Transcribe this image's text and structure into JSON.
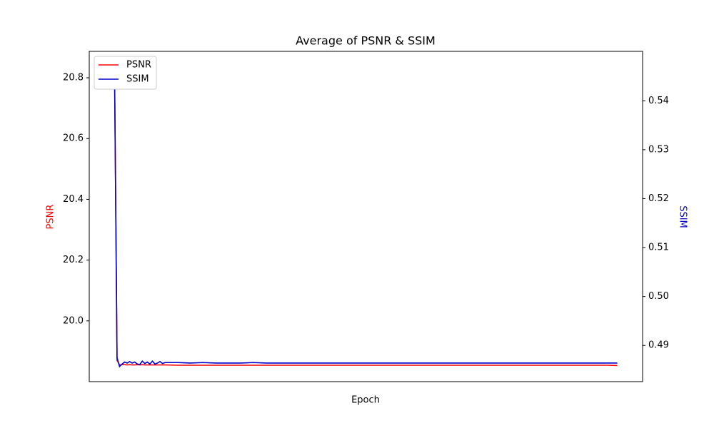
{
  "chart_data": {
    "type": "line",
    "title": "Average of PSNR & SSIM",
    "xlabel": "Epoch",
    "ylabel": "PSNR",
    "y2label": "SSIM",
    "x": [
      0,
      1,
      2,
      3,
      4,
      5,
      6,
      7,
      8,
      9,
      10,
      11,
      12,
      13,
      14,
      15,
      16,
      17,
      18,
      19,
      20,
      25,
      30,
      35,
      40,
      45,
      50,
      55,
      60,
      65,
      70,
      75,
      80,
      85,
      90,
      95,
      100,
      105,
      110,
      115,
      120,
      125,
      130,
      135,
      140,
      145,
      150,
      155,
      160,
      165,
      170,
      175,
      180,
      185,
      190,
      195,
      199
    ],
    "xlim": [
      -10,
      209
    ],
    "ylim": [
      19.8,
      20.887
    ],
    "yticks": [
      {
        "value": 20,
        "label": "20.0"
      },
      20.2,
      20.4,
      20.6,
      20.8
    ],
    "y2lim": [
      0.4826,
      0.5501
    ],
    "y2ticks": [
      0.49,
      {
        "value": 0.5,
        "label": "0.50"
      },
      0.51,
      0.52,
      0.53,
      0.54
    ],
    "legend": "upper left",
    "series": [
      {
        "name": "PSNR",
        "color": "#ff0000",
        "axis": "y",
        "values": [
          20.833,
          19.87,
          19.855,
          19.856,
          19.856,
          19.855,
          19.856,
          19.855,
          19.855,
          19.856,
          19.855,
          19.856,
          19.855,
          19.855,
          19.855,
          19.855,
          19.855,
          19.855,
          19.855,
          19.855,
          19.855,
          19.854,
          19.854,
          19.854,
          19.854,
          19.854,
          19.854,
          19.854,
          19.854,
          19.854,
          19.854,
          19.854,
          19.854,
          19.854,
          19.854,
          19.854,
          19.854,
          19.854,
          19.854,
          19.854,
          19.854,
          19.854,
          19.854,
          19.854,
          19.854,
          19.854,
          19.854,
          19.854,
          19.854,
          19.854,
          19.854,
          19.854,
          19.854,
          19.854,
          19.854,
          19.854,
          19.853
        ]
      },
      {
        "name": "SSIM",
        "color": "#0000cc",
        "axis": "y2",
        "values": [
          0.5467,
          0.4875,
          0.4857,
          0.4862,
          0.4866,
          0.4864,
          0.4867,
          0.4864,
          0.4866,
          0.4862,
          0.4861,
          0.4868,
          0.4863,
          0.4866,
          0.4862,
          0.4868,
          0.4862,
          0.4864,
          0.4867,
          0.4863,
          0.4865,
          0.4865,
          0.4864,
          0.4865,
          0.4864,
          0.4864,
          0.4864,
          0.4865,
          0.4864,
          0.4864,
          0.4864,
          0.4864,
          0.4864,
          0.4864,
          0.4864,
          0.4864,
          0.4864,
          0.4864,
          0.4864,
          0.4864,
          0.4864,
          0.4864,
          0.4864,
          0.4864,
          0.4864,
          0.4864,
          0.4864,
          0.4864,
          0.4864,
          0.4864,
          0.4864,
          0.4864,
          0.4864,
          0.4864,
          0.4864,
          0.4864,
          0.4864
        ]
      }
    ]
  }
}
